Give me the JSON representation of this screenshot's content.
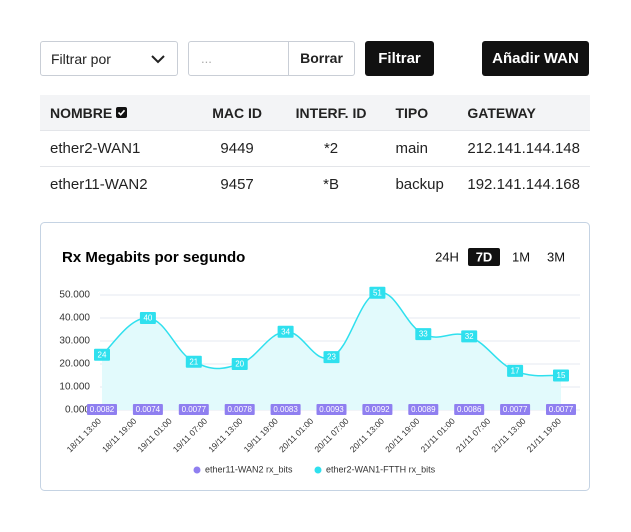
{
  "toolbar": {
    "select": "Filtrar por",
    "placeholder": "...",
    "clear": "Borrar",
    "filter": "Filtrar",
    "add": "Añadir WAN"
  },
  "table": {
    "headers": [
      "NOMBRE",
      "MAC ID",
      "INTERF. ID",
      "TIPO",
      "GATEWAY"
    ],
    "rows": [
      [
        "ether2-WAN1",
        "9449",
        "*2",
        "main",
        "212.141.144.148"
      ],
      [
        "ether11-WAN2",
        "9457",
        "*B",
        "backup",
        "192.141.144.168"
      ]
    ]
  },
  "ranges": [
    "24H",
    "7D",
    "1M",
    "3M"
  ],
  "selected_range": "7D",
  "chart_data": {
    "type": "line",
    "title": "Rx Megabits por segundo",
    "xticks": [
      "18/11 13:00",
      "18/11 19:00",
      "19/11 01:00",
      "19/11 07:00",
      "19/11 13:00",
      "19/11 19:00",
      "20/11 01:00",
      "20/11 07:00",
      "20/11 13:00",
      "20/11 19:00",
      "21/11 01:00",
      "21/11 07:00",
      "21/11 13:00",
      "21/11 19:00"
    ],
    "ylim": [
      0,
      50
    ],
    "yticks": [
      {
        "value": 0,
        "label": "0.000"
      },
      {
        "value": 10,
        "label": "10.000"
      },
      {
        "value": 20,
        "label": "20.000"
      },
      {
        "value": 30,
        "label": "30.000"
      },
      {
        "value": 40,
        "label": "40.000"
      },
      {
        "value": 50,
        "label": "50.000"
      }
    ],
    "grid": true,
    "series": [
      {
        "name": "ether11-WAN2 rx_bits",
        "color": "#8f7ff0",
        "values": [
          0.0082,
          0.0074,
          0.0077,
          0.0078,
          0.0083,
          0.0093,
          0.0092,
          0.0089,
          0.0086,
          0.0077,
          0.0077
        ]
      },
      {
        "name": "ether2-WAN1-FTTH rx_bits",
        "color": "#2fe0ee",
        "values": [
          24,
          40,
          21,
          20,
          34,
          23,
          51,
          33,
          32,
          17,
          15
        ]
      }
    ]
  }
}
